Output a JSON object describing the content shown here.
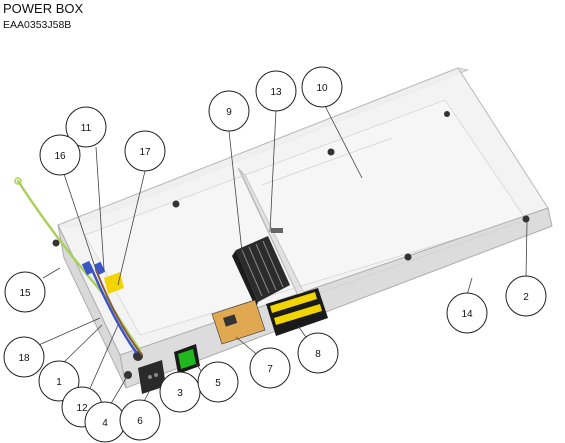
{
  "header": {
    "title": "POWER BOX",
    "part_number": "EAA0353J58B"
  },
  "callouts": [
    "1",
    "2",
    "3",
    "4",
    "5",
    "6",
    "7",
    "8",
    "9",
    "10",
    "11",
    "12",
    "13",
    "14",
    "15",
    "16",
    "17",
    "18"
  ],
  "colors": {
    "box_face": "#ebebeb",
    "box_edge": "#b9b9b9",
    "ground_wire": "#a8d05a",
    "switch_green": "#1fb81f",
    "label_yellow": "#f1d400",
    "warning_label": "#e0a850",
    "connector_blue": "#3b55c8"
  }
}
